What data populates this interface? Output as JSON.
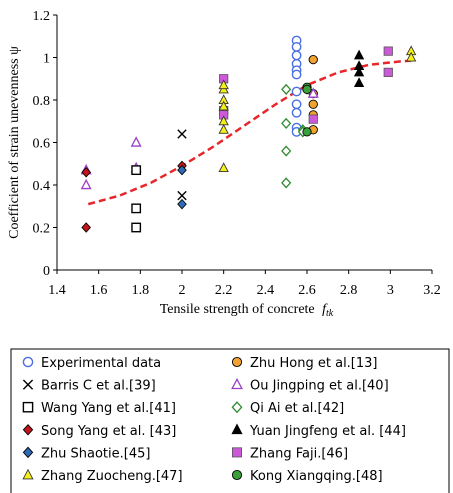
{
  "chart_data": {
    "type": "scatter",
    "xlabel": "Tensile strength of concrete",
    "xlabel_symbol": "f",
    "xlabel_subscript": "tk",
    "ylabel": "Coefficient of strain unevenness ψ",
    "xlim": [
      1.4,
      3.2
    ],
    "ylim": [
      0,
      1.2
    ],
    "xticks": [
      "1.4",
      "1.6",
      "1.8",
      "2",
      "2.2",
      "2.4",
      "2.6",
      "2.8",
      "3",
      "3.2"
    ],
    "yticks": [
      "0",
      "0.2",
      "0.4",
      "0.6",
      "0.8",
      "1",
      "1.2"
    ],
    "grid": "none",
    "legend_position": "bottom",
    "trend_line": {
      "style": "dashed",
      "color": "#e8262a",
      "x": [
        1.55,
        1.7,
        1.85,
        2.0,
        2.15,
        2.3,
        2.45,
        2.6,
        2.75,
        2.9,
        3.05,
        3.1
      ],
      "y": [
        0.31,
        0.35,
        0.41,
        0.49,
        0.58,
        0.68,
        0.78,
        0.87,
        0.93,
        0.966,
        0.982,
        0.985
      ]
    },
    "series": [
      {
        "name": "Experimental data",
        "marker": "circle-open",
        "color": "#4a6fe3",
        "x": [
          2.55,
          2.55,
          2.55,
          2.55,
          2.55,
          2.55,
          2.55,
          2.55,
          2.55,
          2.55,
          2.55
        ],
        "y": [
          1.08,
          1.05,
          1.01,
          0.97,
          0.94,
          0.92,
          0.84,
          0.78,
          0.74,
          0.67,
          0.65
        ]
      },
      {
        "name": "Zhu Hong et al.[13]",
        "marker": "circle",
        "color": "#f2a230",
        "x": [
          2.63,
          2.63,
          2.63,
          2.63,
          2.63
        ],
        "y": [
          0.99,
          0.83,
          0.78,
          0.73,
          0.66
        ]
      },
      {
        "name": "Barris C et al.[39]",
        "marker": "x",
        "color": "#000000",
        "x": [
          2.0,
          2.0
        ],
        "y": [
          0.64,
          0.35
        ]
      },
      {
        "name": "Ou Jingping et al.[40]",
        "marker": "triangle-open",
        "color": "#9b3fc6",
        "x": [
          1.54,
          1.54,
          1.78,
          1.78,
          2.63
        ],
        "y": [
          0.47,
          0.4,
          0.6,
          0.48,
          0.83
        ]
      },
      {
        "name": "Wang Yang et al.[41]",
        "marker": "square-open",
        "color": "#000000",
        "x": [
          1.78,
          1.78,
          1.78
        ],
        "y": [
          0.47,
          0.29,
          0.2
        ]
      },
      {
        "name": "Qi Ai et al.[42]",
        "marker": "diamond-open",
        "color": "#2e8b2e",
        "x": [
          2.5,
          2.5,
          2.5,
          2.5,
          2.58,
          2.58
        ],
        "y": [
          0.85,
          0.69,
          0.56,
          0.41,
          0.66,
          0.65
        ]
      },
      {
        "name": "Song Yang et al. [43]",
        "marker": "diamond",
        "color": "#c0161c",
        "x": [
          1.54,
          1.54,
          2.0,
          2.6
        ],
        "y": [
          0.46,
          0.2,
          0.49,
          0.85
        ]
      },
      {
        "name": "Yuan Jingfeng et al. [44]",
        "marker": "triangle",
        "color": "#000000",
        "x": [
          2.85,
          2.85,
          2.85,
          2.85
        ],
        "y": [
          1.01,
          0.96,
          0.93,
          0.88
        ]
      },
      {
        "name": "Zhu Shaotie.[45]",
        "marker": "diamond",
        "color": "#2d6cb5",
        "x": [
          2.0,
          2.0
        ],
        "y": [
          0.47,
          0.31
        ]
      },
      {
        "name": "Zhang Faji.[46]",
        "marker": "square",
        "color": "#cc5ad8",
        "x": [
          2.2,
          2.2,
          2.2,
          2.63,
          2.99,
          2.99
        ],
        "y": [
          0.9,
          0.75,
          0.73,
          0.71,
          1.03,
          0.93
        ]
      },
      {
        "name": "Zhang Zuocheng.[47]",
        "marker": "triangle",
        "color": "#f5ef1a",
        "x": [
          2.2,
          2.2,
          2.2,
          2.2,
          2.2,
          2.2,
          2.2,
          3.1,
          3.1
        ],
        "y": [
          0.85,
          0.8,
          0.77,
          0.7,
          0.66,
          0.48,
          0.87,
          1.03,
          1.0
        ]
      },
      {
        "name": "Kong Xiangqing.[48]",
        "marker": "circle",
        "color": "#3aa13a",
        "x": [
          2.6,
          2.6,
          2.6
        ],
        "y": [
          0.86,
          0.85,
          0.65
        ]
      }
    ]
  }
}
